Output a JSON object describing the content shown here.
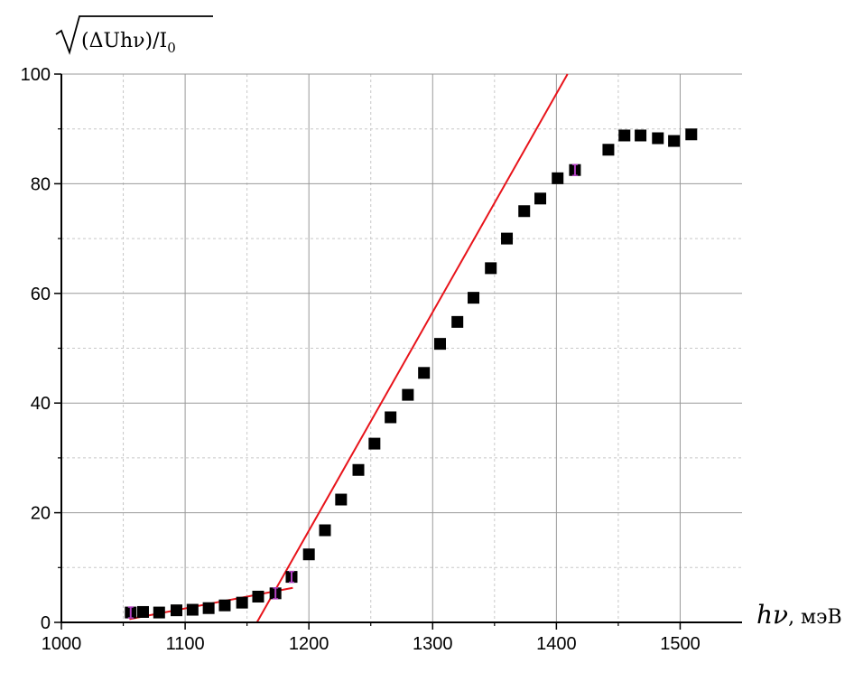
{
  "chart_data": {
    "type": "scatter",
    "xlabel_var": "hν",
    "xlabel_unit": ", мэВ",
    "ylabel": "(ΔUhν)/I",
    "ylabel_sub": "0",
    "xlim": [
      1000,
      1550
    ],
    "ylim": [
      0,
      100
    ],
    "xticks": [
      1000,
      1100,
      1200,
      1300,
      1400,
      1500
    ],
    "yticks": [
      0,
      20,
      40,
      60,
      80,
      100
    ],
    "grid": true,
    "colors": {
      "points": "#000000",
      "fit": "#e8141b",
      "error_bar": "#b040c0",
      "grid_major": "#999999",
      "grid_minor": "#c8c8c8"
    },
    "points": [
      {
        "x": 1056,
        "y": 1.8
      },
      {
        "x": 1066,
        "y": 1.9
      },
      {
        "x": 1079,
        "y": 1.8
      },
      {
        "x": 1093,
        "y": 2.2
      },
      {
        "x": 1106,
        "y": 2.3
      },
      {
        "x": 1119,
        "y": 2.6
      },
      {
        "x": 1132,
        "y": 3.1
      },
      {
        "x": 1146,
        "y": 3.6
      },
      {
        "x": 1159,
        "y": 4.7
      },
      {
        "x": 1173,
        "y": 5.3
      },
      {
        "x": 1186,
        "y": 8.3
      },
      {
        "x": 1200,
        "y": 12.4
      },
      {
        "x": 1213,
        "y": 16.8
      },
      {
        "x": 1226,
        "y": 22.4
      },
      {
        "x": 1240,
        "y": 27.8
      },
      {
        "x": 1253,
        "y": 32.6
      },
      {
        "x": 1266,
        "y": 37.4
      },
      {
        "x": 1280,
        "y": 41.5
      },
      {
        "x": 1293,
        "y": 45.5
      },
      {
        "x": 1306,
        "y": 50.8
      },
      {
        "x": 1320,
        "y": 54.8
      },
      {
        "x": 1333,
        "y": 59.2
      },
      {
        "x": 1347,
        "y": 64.6
      },
      {
        "x": 1360,
        "y": 70.0
      },
      {
        "x": 1374,
        "y": 75.0
      },
      {
        "x": 1387,
        "y": 77.3
      },
      {
        "x": 1401,
        "y": 81.0
      },
      {
        "x": 1415,
        "y": 82.5
      },
      {
        "x": 1442,
        "y": 86.2
      },
      {
        "x": 1455,
        "y": 88.8
      },
      {
        "x": 1468,
        "y": 88.8
      },
      {
        "x": 1482,
        "y": 88.3
      },
      {
        "x": 1495,
        "y": 87.8
      },
      {
        "x": 1509,
        "y": 89.0
      }
    ],
    "error_bars_at": [
      1056,
      1173,
      1186,
      1415
    ],
    "fit_lines": [
      {
        "x": [
          1055,
          1187
        ],
        "y": [
          0.6,
          6.3
        ]
      },
      {
        "x": [
          1158,
          1409
        ],
        "y": [
          0,
          100
        ]
      }
    ]
  }
}
